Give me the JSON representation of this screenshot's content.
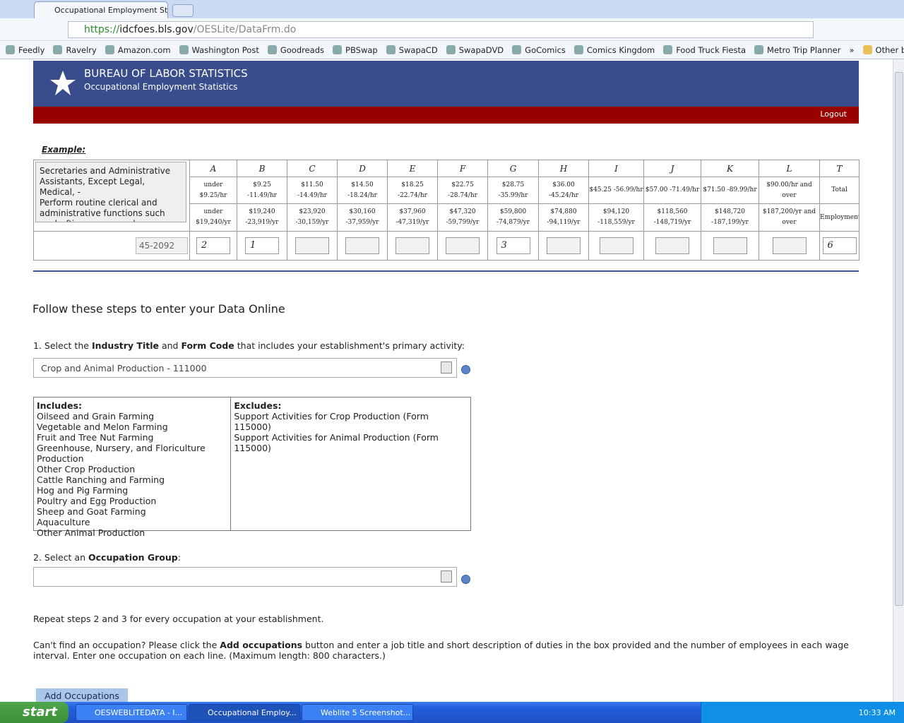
{
  "browser": {
    "tabs": [
      "Occupational Employment St"
    ],
    "url": {
      "scheme": "https://",
      "host": "idcfoes.bls.gov",
      "path": "/OESLite/DataFrm.do"
    },
    "bookmarks": [
      "Feedly",
      "Ravelry",
      "Amazon.com",
      "Washington Post",
      "Goodreads",
      "PBSwap",
      "SwapaCD",
      "SwapaDVD",
      "GoComics",
      "Comics Kingdom",
      "Food Truck Fiesta",
      "Metro Trip Planner"
    ],
    "overflow": "»",
    "other_bookmarks": "Other bookmarks"
  },
  "header": {
    "agency": "BUREAU OF LABOR STATISTICS",
    "program": "Occupational Employment Statistics",
    "logout": "Logout"
  },
  "example": {
    "label": "Example:",
    "description": [
      "Secretaries and Administrative Assistants, Except Legal, Medical, -",
      "Perform routine clerical and administrative functions such as drafting correspondence"
    ],
    "code": "45-2092",
    "columns": [
      {
        "letter": "A",
        "hourly": "under $9.25/hr",
        "annual": "under $19,240/yr",
        "entry": "2"
      },
      {
        "letter": "B",
        "hourly": "$9.25 -11.49/hr",
        "annual": "$19,240 -23,919/yr",
        "entry": "1"
      },
      {
        "letter": "C",
        "hourly": "$11.50 -14.49/hr",
        "annual": "$23,920 -30,159/yr"
      },
      {
        "letter": "D",
        "hourly": "$14.50 -18.24/hr",
        "annual": "$30,160 -37,959/yr"
      },
      {
        "letter": "E",
        "hourly": "$18.25 -22.74/hr",
        "annual": "$37,960 -47,319/yr"
      },
      {
        "letter": "F",
        "hourly": "$22.75 -28.74/hr",
        "annual": "$47,320 -59,799/yr"
      },
      {
        "letter": "G",
        "hourly": "$28.75 -35.99/hr",
        "annual": "$59,800 -74,879/yr",
        "entry": "3"
      },
      {
        "letter": "H",
        "hourly": "$36.00 -45.24/hr",
        "annual": "$74,880 -94,119/yr"
      },
      {
        "letter": "I",
        "hourly": "$45.25 -56.99/hr",
        "annual": "$94,120 -118,559/yr"
      },
      {
        "letter": "J",
        "hourly": "$57.00 -71.49/hr",
        "annual": "$118,560 -148,719/yr"
      },
      {
        "letter": "K",
        "hourly": "$71.50 -89.99/hr",
        "annual": "$148,720 -187,199/yr"
      },
      {
        "letter": "L",
        "hourly": "$90.00/hr and over",
        "annual": "$187,200/yr and over"
      },
      {
        "letter": "T",
        "hourly": "Total",
        "annual": "Employment",
        "entry": "6"
      }
    ]
  },
  "steps": {
    "title": "Follow these steps to enter your Data Online",
    "step1": [
      "1. Select the ",
      "Industry Title",
      " and ",
      "Form Code",
      " that includes your establishment's primary activity:"
    ],
    "industry_select": "Crop and Animal Production - 111000",
    "includes": {
      "header": "Includes:",
      "items": [
        "Oilseed and Grain Farming",
        "Vegetable and Melon Farming",
        "Fruit and Tree Nut Farming",
        "Greenhouse, Nursery, and Floriculture Production",
        "Other Crop Production",
        "Cattle Ranching and Farming",
        "Hog and Pig Farming",
        "Poultry and Egg Production",
        "Sheep and Goat Farming",
        "Aquaculture",
        "Other Animal Production"
      ]
    },
    "excludes": {
      "header": "Excludes:",
      "items": [
        "Support Activities for Crop Production (Form 115000)",
        "Support Activities for Animal Production (Form 115000)"
      ]
    },
    "step2": [
      "2. Select an ",
      "Occupation Group",
      ":"
    ],
    "repeat": "Repeat steps 2 and 3 for every occupation at your establishment.",
    "cant_find": [
      "Can't find an occupation? Please click the ",
      "Add occupations",
      " button and enter a job title and short description of duties in the box provided and the number of employees in each wage interval. Enter one occupation on each line. (Maximum length: 800 characters.)"
    ],
    "add_button": "Add Occupations"
  },
  "taskbar": {
    "start": "start",
    "items": [
      "OESWEBLITEDATA - I...",
      "Occupational Employ...",
      "Weblite 5 Screenshot..."
    ],
    "clock": "10:33 AM"
  }
}
